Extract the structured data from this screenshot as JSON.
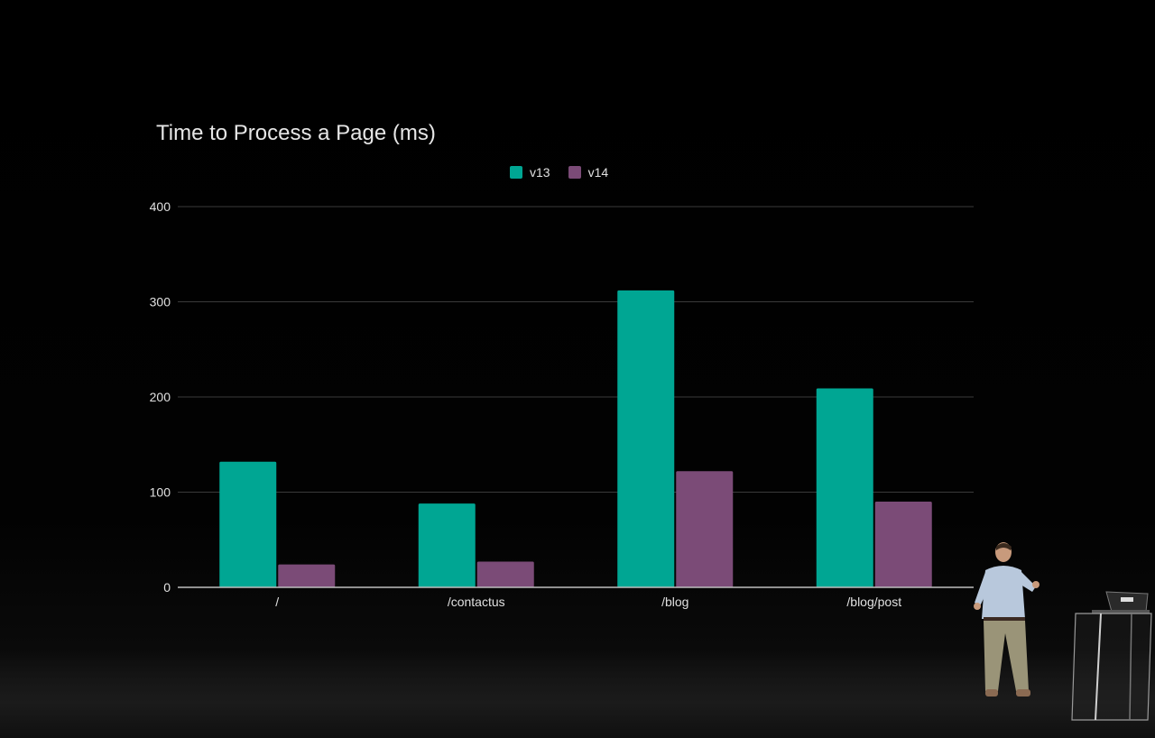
{
  "chart_data": {
    "type": "bar",
    "title": "Time to Process a Page (ms)",
    "categories": [
      "/",
      "/contactus",
      "/blog",
      "/blog/post"
    ],
    "series": [
      {
        "name": "v13",
        "color": "#00a693",
        "values": [
          132,
          88,
          312,
          209
        ]
      },
      {
        "name": "v14",
        "color": "#7b4b77",
        "values": [
          24,
          27,
          122,
          90
        ]
      }
    ],
    "y_ticks": [
      "0",
      "100",
      "200",
      "300",
      "400"
    ],
    "ylim": [
      0,
      400
    ],
    "xlabel": "",
    "ylabel": "",
    "grid": true,
    "legend_position": "top-center"
  },
  "colors": {
    "background": "#000000",
    "gridline": "#3a3a3a",
    "baseline": "#bdbdbd",
    "text": "#e0e0e0"
  }
}
